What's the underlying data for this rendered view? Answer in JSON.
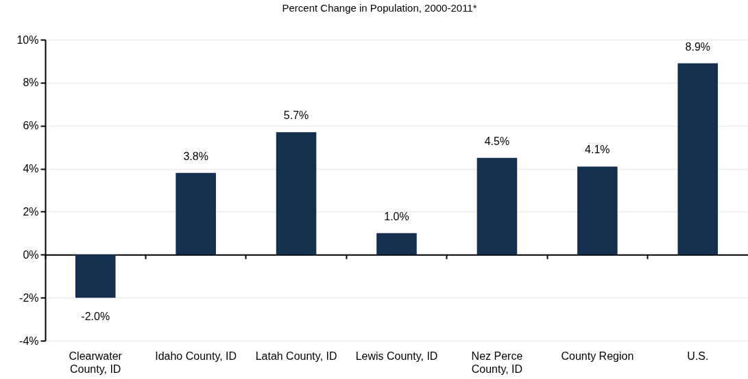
{
  "chart_data": {
    "type": "bar",
    "title": "Percent Change in Population, 2000-2011*",
    "categories": [
      "Clearwater County, ID",
      "Idaho County, ID",
      "Latah County, ID",
      "Lewis County, ID",
      "Nez Perce County, ID",
      "County Region",
      "U.S."
    ],
    "values": [
      -2.0,
      3.8,
      5.7,
      1.0,
      4.5,
      4.1,
      8.9
    ],
    "value_labels": [
      "-2.0%",
      "3.8%",
      "5.7%",
      "1.0%",
      "4.5%",
      "4.1%",
      "8.9%"
    ],
    "color": "#152f4e",
    "ylim": [
      -4,
      10
    ],
    "yticks": [
      {
        "value": -4,
        "label": "-4%"
      },
      {
        "value": -2,
        "label": "-2%"
      },
      {
        "value": 0,
        "label": "0%"
      },
      {
        "value": 2,
        "label": "2%"
      },
      {
        "value": 4,
        "label": "4%"
      },
      {
        "value": 6,
        "label": "6%"
      },
      {
        "value": 8,
        "label": "8%"
      },
      {
        "value": 10,
        "label": "10%"
      }
    ],
    "grid": "y"
  }
}
